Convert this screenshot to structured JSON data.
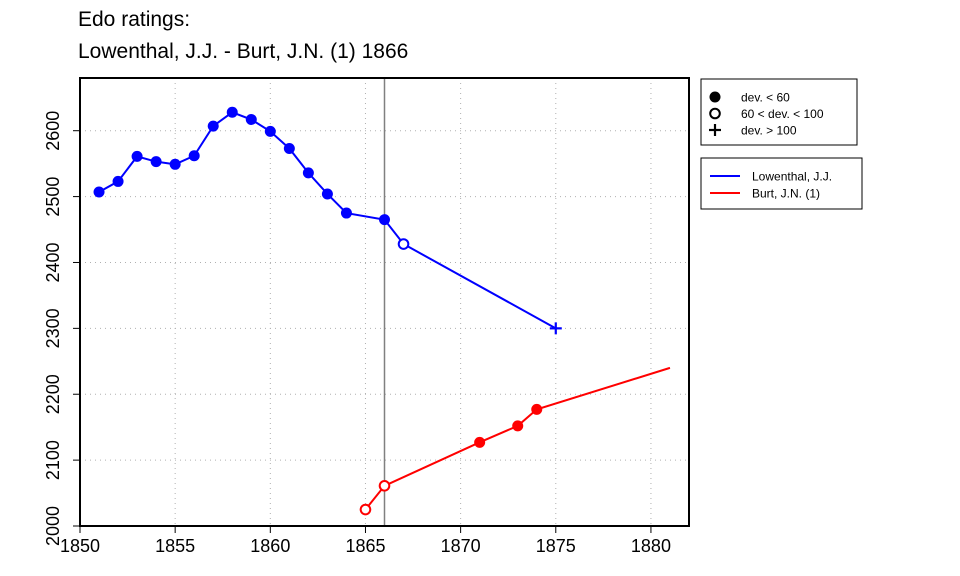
{
  "title_line1": "Edo ratings:",
  "title_line2": "Lowenthal, J.J. - Burt, J.N. (1) 1866",
  "chart_data": {
    "type": "line",
    "xlim": [
      1850,
      1882
    ],
    "ylim": [
      2000,
      2680
    ],
    "x_ticks": [
      1850,
      1855,
      1860,
      1865,
      1870,
      1875,
      1880
    ],
    "y_ticks": [
      2000,
      2100,
      2200,
      2300,
      2400,
      2500,
      2600
    ],
    "grid": true,
    "vertical_marker_x": 1866,
    "marker_legend": {
      "position": "top-right",
      "items": [
        {
          "symbol": "filled-circle",
          "label": "dev. < 60"
        },
        {
          "symbol": "open-circle",
          "label": "60 < dev. < 100"
        },
        {
          "symbol": "plus",
          "label": "dev. > 100"
        }
      ]
    },
    "series": [
      {
        "name": "Lowenthal, J.J.",
        "color": "#0000ff",
        "points": [
          {
            "x": 1851,
            "y": 2507,
            "marker": "filled-circle"
          },
          {
            "x": 1852,
            "y": 2523,
            "marker": "filled-circle"
          },
          {
            "x": 1853,
            "y": 2561,
            "marker": "filled-circle"
          },
          {
            "x": 1854,
            "y": 2553,
            "marker": "filled-circle"
          },
          {
            "x": 1855,
            "y": 2549,
            "marker": "filled-circle"
          },
          {
            "x": 1856,
            "y": 2562,
            "marker": "filled-circle"
          },
          {
            "x": 1857,
            "y": 2607,
            "marker": "filled-circle"
          },
          {
            "x": 1858,
            "y": 2628,
            "marker": "filled-circle"
          },
          {
            "x": 1859,
            "y": 2617,
            "marker": "filled-circle"
          },
          {
            "x": 1860,
            "y": 2599,
            "marker": "filled-circle"
          },
          {
            "x": 1861,
            "y": 2573,
            "marker": "filled-circle"
          },
          {
            "x": 1862,
            "y": 2536,
            "marker": "filled-circle"
          },
          {
            "x": 1863,
            "y": 2504,
            "marker": "filled-circle"
          },
          {
            "x": 1864,
            "y": 2475,
            "marker": "filled-circle"
          },
          {
            "x": 1866,
            "y": 2465,
            "marker": "filled-circle"
          },
          {
            "x": 1867,
            "y": 2428,
            "marker": "open-circle"
          },
          {
            "x": 1875,
            "y": 2300,
            "marker": "plus"
          }
        ]
      },
      {
        "name": "Burt, J.N. (1)",
        "color": "#ff0000",
        "points": [
          {
            "x": 1865,
            "y": 2025,
            "marker": "open-circle"
          },
          {
            "x": 1866,
            "y": 2061,
            "marker": "open-circle"
          },
          {
            "x": 1871,
            "y": 2127,
            "marker": "filled-circle"
          },
          {
            "x": 1873,
            "y": 2152,
            "marker": "filled-circle"
          },
          {
            "x": 1874,
            "y": 2177,
            "marker": "filled-circle"
          },
          {
            "x": 1881,
            "y": 2240,
            "marker": "none"
          }
        ]
      }
    ]
  }
}
